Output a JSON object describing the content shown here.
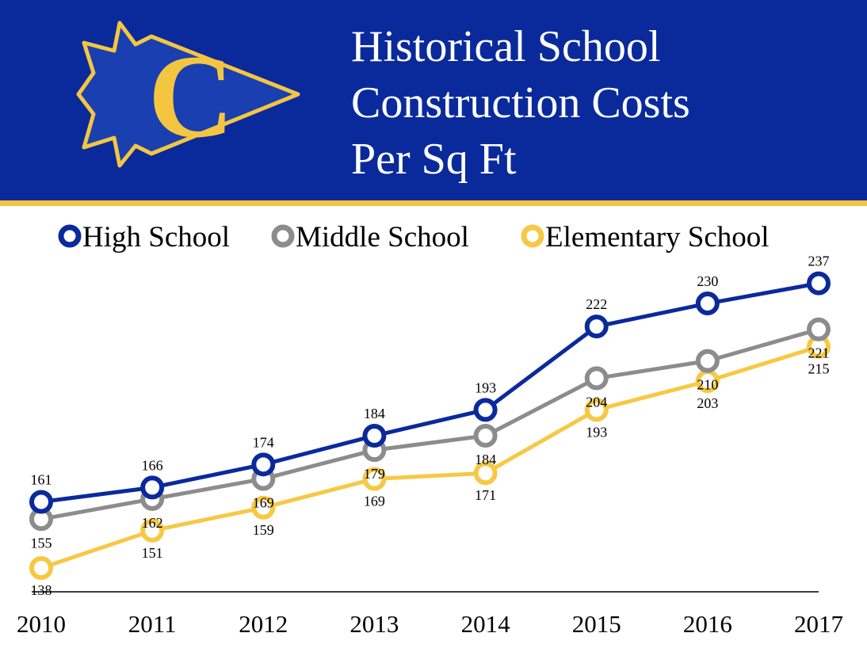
{
  "header": {
    "title_lines": [
      "Historical School",
      "Construction Costs",
      "Per Sq Ft"
    ],
    "logo_letter": "C",
    "background_color": "#0a2a9c",
    "accent_color": "#f4c640"
  },
  "chart_data": {
    "type": "line",
    "title": "Historical School Construction Costs Per Sq Ft",
    "x": [
      "2010",
      "2011",
      "2012",
      "2013",
      "2014",
      "2015",
      "2016",
      "2017"
    ],
    "series": [
      {
        "name": "High School",
        "color": "#0a2a9c",
        "values": [
          161,
          166,
          174,
          184,
          193,
          222,
          230,
          237
        ]
      },
      {
        "name": "Middle School",
        "color": "#8c8c8c",
        "values": [
          155,
          162,
          169,
          179,
          184,
          204,
          210,
          221
        ]
      },
      {
        "name": "Elementary School",
        "color": "#f7c843",
        "values": [
          138,
          151,
          159,
          169,
          171,
          193,
          203,
          215
        ]
      }
    ],
    "xlabel": "",
    "ylabel": "",
    "ylim": [
      130,
      245
    ],
    "grid": false,
    "legend_position": "top",
    "data_labels": true
  }
}
